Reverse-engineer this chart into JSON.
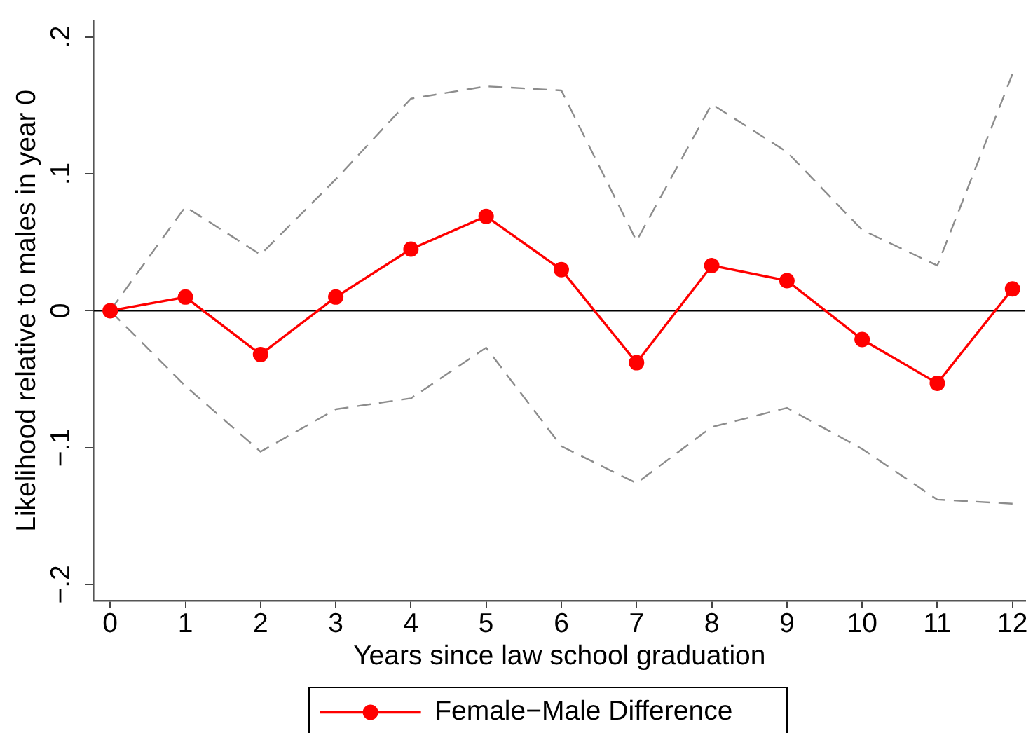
{
  "chart_data": {
    "type": "line",
    "xlabel": "Years since law school graduation",
    "ylabel": "Likelihood relative to males in year 0",
    "x": [
      0,
      1,
      2,
      3,
      4,
      5,
      6,
      7,
      8,
      9,
      10,
      11,
      12
    ],
    "series": [
      {
        "name": "Female−Male Difference",
        "color": "#ff0000",
        "values": [
          0,
          0.01,
          -0.032,
          0.01,
          0.045,
          0.069,
          0.03,
          -0.038,
          0.033,
          0.022,
          -0.021,
          -0.053,
          0.016
        ]
      },
      {
        "color": "#8c8c8c",
        "line_style": "dashed",
        "marker": "none",
        "values": [
          0,
          0.076,
          0.041,
          0.096,
          0.155,
          0.164,
          0.161,
          0.051,
          0.151,
          0.116,
          0.059,
          0.033,
          0.173
        ]
      },
      {
        "color": "#8c8c8c",
        "line_style": "dashed",
        "marker": "none",
        "values": [
          0,
          -0.055,
          -0.103,
          -0.072,
          -0.064,
          -0.027,
          -0.099,
          -0.126,
          -0.085,
          -0.071,
          -0.101,
          -0.138,
          -0.141
        ]
      }
    ],
    "xlim": [
      -0.22,
      12.17
    ],
    "xticks": [
      0,
      1,
      2,
      3,
      4,
      5,
      6,
      7,
      8,
      9,
      10,
      11,
      12
    ],
    "ylim": [
      -0.212,
      0.212
    ],
    "yticks": [
      {
        "value": -0.2,
        "label": "−.2"
      },
      {
        "value": -0.1,
        "label": "−.1"
      },
      0,
      {
        "value": 0.1,
        "label": ".1"
      },
      {
        "value": 0.2,
        "label": ".2"
      }
    ],
    "ref_lines": [
      {
        "axis": "y",
        "value": 0,
        "color": "#000000"
      }
    ],
    "marker": "circle",
    "line_style": "solid",
    "legend": "bottom"
  }
}
